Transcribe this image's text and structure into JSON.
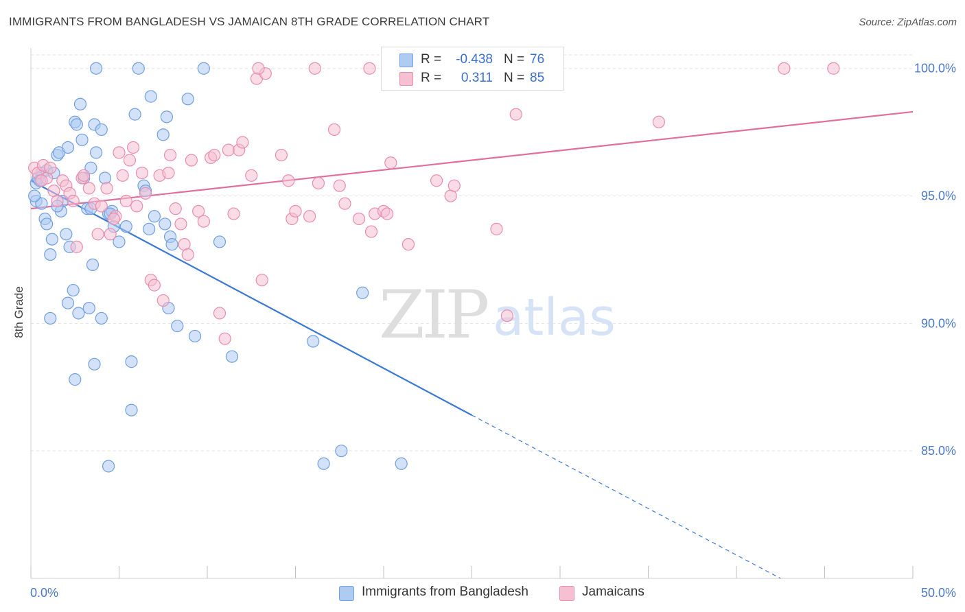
{
  "title": "IMMIGRANTS FROM BANGLADESH VS JAMAICAN 8TH GRADE CORRELATION CHART",
  "source": "Source: ZipAtlas.com",
  "watermark": {
    "zip": "ZIP",
    "atlas": "atlas"
  },
  "legend": {
    "rows": [
      {
        "r_label": "R =",
        "r_value": "-0.438",
        "n_label": "N =",
        "n_value": "76",
        "color": "#aecbf2",
        "stroke": "#6f9fe0"
      },
      {
        "r_label": "R =",
        "r_value": "0.311",
        "n_label": "N =",
        "n_value": "85",
        "color": "#f6bfd2",
        "stroke": "#e98cae"
      }
    ]
  },
  "bottom_legend": [
    {
      "label": "Immigrants from Bangladesh",
      "color": "#aecbf2",
      "stroke": "#6f9fe0"
    },
    {
      "label": "Jamaicans",
      "color": "#f6bfd2",
      "stroke": "#e98cae"
    }
  ],
  "chart_data": {
    "type": "scatter",
    "title": "IMMIGRANTS FROM BANGLADESH VS JAMAICAN 8TH GRADE CORRELATION CHART",
    "xlabel": "",
    "ylabel": "8th Grade",
    "xlim": [
      0,
      50
    ],
    "ylim": [
      80.0,
      100.8
    ],
    "x_tick_labels": [
      "0.0%",
      "50.0%"
    ],
    "y_ticks": [
      85,
      90,
      95,
      100
    ],
    "y_tick_labels": [
      "85.0%",
      "90.0%",
      "95.0%",
      "100.0%"
    ],
    "grid": true,
    "legend_position": "bottom-center",
    "series": [
      {
        "name": "Immigrants from Bangladesh",
        "color": "#6f9fe0",
        "fill": "#aecbf2",
        "trend": {
          "x0": 0.0,
          "y0": 95.6,
          "x1": 25.0,
          "y1": 86.4,
          "dash_to_x": 42.5,
          "dash_to_y": 80.0,
          "color": "#3a78d8"
        },
        "points": [
          [
            0.3,
            95.5
          ],
          [
            0.3,
            94.8
          ],
          [
            0.4,
            95.7
          ],
          [
            0.6,
            94.7
          ],
          [
            0.6,
            95.9
          ],
          [
            0.8,
            94.1
          ],
          [
            0.9,
            93.9
          ],
          [
            0.9,
            96.0
          ],
          [
            1.1,
            92.7
          ],
          [
            1.2,
            93.3
          ],
          [
            1.3,
            95.9
          ],
          [
            1.5,
            96.6
          ],
          [
            1.6,
            96.7
          ],
          [
            1.7,
            94.4
          ],
          [
            1.8,
            94.8
          ],
          [
            2.0,
            93.5
          ],
          [
            2.1,
            96.9
          ],
          [
            2.2,
            93.0
          ],
          [
            2.5,
            97.9
          ],
          [
            2.6,
            97.8
          ],
          [
            2.8,
            98.6
          ],
          [
            2.9,
            97.2
          ],
          [
            3.0,
            95.7
          ],
          [
            3.2,
            94.5
          ],
          [
            3.4,
            96.1
          ],
          [
            3.6,
            97.8
          ],
          [
            3.7,
            96.7
          ],
          [
            4.0,
            97.6
          ],
          [
            4.2,
            95.7
          ],
          [
            4.4,
            94.3
          ],
          [
            4.6,
            94.4
          ],
          [
            4.7,
            93.8
          ],
          [
            5.0,
            93.2
          ],
          [
            5.4,
            93.8
          ],
          [
            5.9,
            98.2
          ],
          [
            6.4,
            95.4
          ],
          [
            6.5,
            95.2
          ],
          [
            6.7,
            93.7
          ],
          [
            6.8,
            98.9
          ],
          [
            7.0,
            94.2
          ],
          [
            7.5,
            97.4
          ],
          [
            7.6,
            93.9
          ],
          [
            7.7,
            98.1
          ],
          [
            7.9,
            93.4
          ],
          [
            8.0,
            93.1
          ],
          [
            8.9,
            98.8
          ],
          [
            10.7,
            93.2
          ],
          [
            2.4,
            91.3
          ],
          [
            2.1,
            90.8
          ],
          [
            1.1,
            90.2
          ],
          [
            2.7,
            90.4
          ],
          [
            3.3,
            90.6
          ],
          [
            4.0,
            90.2
          ],
          [
            3.5,
            92.3
          ],
          [
            7.8,
            90.6
          ],
          [
            8.3,
            89.9
          ],
          [
            9.3,
            89.5
          ],
          [
            11.4,
            88.7
          ],
          [
            3.6,
            88.4
          ],
          [
            5.7,
            88.5
          ],
          [
            2.5,
            87.8
          ],
          [
            5.7,
            86.6
          ],
          [
            4.4,
            84.4
          ],
          [
            16.0,
            89.3
          ],
          [
            18.8,
            91.2
          ],
          [
            16.6,
            84.5
          ],
          [
            17.6,
            85.0
          ],
          [
            21.0,
            84.5
          ],
          [
            3.7,
            100.0
          ],
          [
            6.1,
            100.0
          ],
          [
            9.8,
            100.0
          ],
          [
            0.5,
            95.6
          ],
          [
            0.2,
            95.0
          ],
          [
            1.5,
            94.6
          ],
          [
            4.5,
            94.3
          ],
          [
            3.4,
            94.5
          ]
        ]
      },
      {
        "name": "Jamaicans",
        "color": "#e98cae",
        "fill": "#f6bfd2",
        "trend": {
          "x0": 0.0,
          "y0": 94.5,
          "x1": 50.0,
          "y1": 98.3,
          "color": "#e0709a"
        },
        "points": [
          [
            0.2,
            96.1
          ],
          [
            0.4,
            95.9
          ],
          [
            0.7,
            96.2
          ],
          [
            0.9,
            95.7
          ],
          [
            1.1,
            96.1
          ],
          [
            1.3,
            95.2
          ],
          [
            1.5,
            94.8
          ],
          [
            1.8,
            95.6
          ],
          [
            2.0,
            95.4
          ],
          [
            2.2,
            95.1
          ],
          [
            2.4,
            94.8
          ],
          [
            2.6,
            93.0
          ],
          [
            2.9,
            95.7
          ],
          [
            3.0,
            95.8
          ],
          [
            3.3,
            95.3
          ],
          [
            3.6,
            94.7
          ],
          [
            3.8,
            93.5
          ],
          [
            4.0,
            94.6
          ],
          [
            4.3,
            95.3
          ],
          [
            4.5,
            93.5
          ],
          [
            4.8,
            94.2
          ],
          [
            5.0,
            96.7
          ],
          [
            5.2,
            95.8
          ],
          [
            5.4,
            94.8
          ],
          [
            5.6,
            96.4
          ],
          [
            5.8,
            96.9
          ],
          [
            6.0,
            94.6
          ],
          [
            6.3,
            95.9
          ],
          [
            6.5,
            95.1
          ],
          [
            6.8,
            91.7
          ],
          [
            7.0,
            91.5
          ],
          [
            7.3,
            95.8
          ],
          [
            7.5,
            90.9
          ],
          [
            7.8,
            95.9
          ],
          [
            7.9,
            96.6
          ],
          [
            8.2,
            94.5
          ],
          [
            8.5,
            93.9
          ],
          [
            8.7,
            93.1
          ],
          [
            8.9,
            92.7
          ],
          [
            9.1,
            96.4
          ],
          [
            9.5,
            94.4
          ],
          [
            9.8,
            94.0
          ],
          [
            10.2,
            96.5
          ],
          [
            10.4,
            96.6
          ],
          [
            10.7,
            90.4
          ],
          [
            11.0,
            89.4
          ],
          [
            11.2,
            96.8
          ],
          [
            11.5,
            94.3
          ],
          [
            11.8,
            96.8
          ],
          [
            12.0,
            97.1
          ],
          [
            12.5,
            95.8
          ],
          [
            12.8,
            99.6
          ],
          [
            13.1,
            91.7
          ],
          [
            13.3,
            99.8
          ],
          [
            14.2,
            96.6
          ],
          [
            14.6,
            95.6
          ],
          [
            14.8,
            94.1
          ],
          [
            15.0,
            94.4
          ],
          [
            15.8,
            94.2
          ],
          [
            16.3,
            95.5
          ],
          [
            17.2,
            97.6
          ],
          [
            17.5,
            95.4
          ],
          [
            17.8,
            94.7
          ],
          [
            18.6,
            94.1
          ],
          [
            19.3,
            93.6
          ],
          [
            19.5,
            94.3
          ],
          [
            20.0,
            94.4
          ],
          [
            20.4,
            96.3
          ],
          [
            21.4,
            93.1
          ],
          [
            23.0,
            95.6
          ],
          [
            23.8,
            95.0
          ],
          [
            24.0,
            95.4
          ],
          [
            26.4,
            93.7
          ],
          [
            27.0,
            90.3
          ],
          [
            27.5,
            98.2
          ],
          [
            35.6,
            97.9
          ],
          [
            42.7,
            100.0
          ],
          [
            45.5,
            100.0
          ],
          [
            16.1,
            100.0
          ],
          [
            19.2,
            100.0
          ],
          [
            26.5,
            100.0
          ],
          [
            12.9,
            100.0
          ],
          [
            4.7,
            94.1
          ],
          [
            0.6,
            95.6
          ],
          [
            20.2,
            94.3
          ]
        ]
      }
    ]
  }
}
